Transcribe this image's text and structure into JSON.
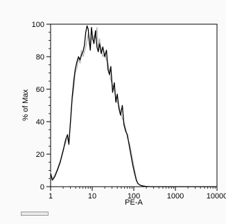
{
  "chart_data": {
    "type": "line",
    "title": "",
    "xlabel": "PE-A",
    "ylabel": "% of Max",
    "xscale": "log",
    "xlim": [
      1,
      10000
    ],
    "ylim": [
      0,
      100
    ],
    "x_ticks": [
      {
        "value": 1,
        "label": "1"
      },
      {
        "value": 10,
        "label": "10"
      },
      {
        "value": 100,
        "label": "100"
      },
      {
        "value": 1000,
        "label": "1000"
      },
      {
        "value": 10000,
        "label": "10000"
      }
    ],
    "y_ticks": [
      {
        "value": 0,
        "label": "0"
      },
      {
        "value": 20,
        "label": "20"
      },
      {
        "value": 40,
        "label": "40"
      },
      {
        "value": 60,
        "label": "60"
      },
      {
        "value": 80,
        "label": "80"
      },
      {
        "value": 100,
        "label": "100"
      }
    ],
    "grid": false,
    "legend": "none",
    "series": [
      {
        "color": "#000000",
        "x": [
          1,
          1.1,
          1.25,
          1.45,
          1.7,
          2.0,
          2.3,
          2.55,
          2.75,
          3.0,
          3.3,
          3.6,
          3.9,
          4.3,
          4.7,
          5.1,
          5.5,
          6.0,
          6.5,
          7.0,
          7.5,
          8.0,
          8.5,
          9.0,
          9.6,
          10.2,
          11,
          12,
          13,
          14,
          15,
          16.5,
          18,
          20,
          22,
          24,
          26,
          28,
          31,
          34,
          37,
          40,
          44,
          48,
          53,
          58,
          64,
          70,
          78,
          86,
          95,
          105,
          115,
          125,
          140,
          160,
          190,
          250,
          400,
          1000,
          3000,
          10000
        ],
        "y": [
          8,
          4,
          6,
          10,
          15,
          22,
          29,
          32,
          26,
          40,
          55,
          65,
          72,
          77,
          80,
          78,
          81,
          83,
          87,
          95,
          99,
          97,
          90,
          84,
          98,
          92,
          88,
          96,
          86,
          83,
          88,
          82,
          86,
          80,
          84,
          72,
          69,
          74,
          58,
          64,
          52,
          57,
          48,
          44,
          50,
          38,
          34,
          32,
          25,
          19,
          13,
          8,
          4,
          2,
          1,
          0.5,
          0.2,
          0,
          0,
          0,
          0,
          0
        ]
      },
      {
        "color": "#aaaaaa",
        "x": [
          1,
          1.1,
          1.25,
          1.45,
          1.7,
          2.0,
          2.3,
          2.55,
          2.75,
          3.0,
          3.3,
          3.6,
          3.9,
          4.3,
          4.7,
          5.1,
          5.5,
          6.0,
          6.5,
          7.0,
          7.5,
          8.0,
          8.5,
          9.0,
          9.6,
          10.2,
          11,
          12,
          13,
          14,
          15,
          16.5,
          18,
          20,
          22,
          24,
          26,
          28,
          31,
          34,
          37,
          40,
          44,
          48,
          53,
          58,
          64,
          70,
          78,
          86,
          95,
          105,
          115,
          125,
          140,
          160,
          190,
          250,
          400,
          1000,
          3000,
          10000
        ],
        "y": [
          9,
          5,
          7,
          11,
          16,
          23,
          27,
          30,
          28,
          38,
          53,
          60,
          70,
          73,
          79,
          76,
          84,
          80,
          83,
          86,
          90,
          94,
          88,
          85,
          92,
          90,
          93,
          91,
          98,
          85,
          91,
          84,
          80,
          82,
          78,
          76,
          70,
          66,
          62,
          60,
          55,
          52,
          50,
          46,
          42,
          40,
          36,
          30,
          27,
          22,
          16,
          10,
          5,
          2,
          1,
          0.5,
          0.2,
          0,
          0,
          0,
          0,
          0
        ]
      }
    ]
  }
}
